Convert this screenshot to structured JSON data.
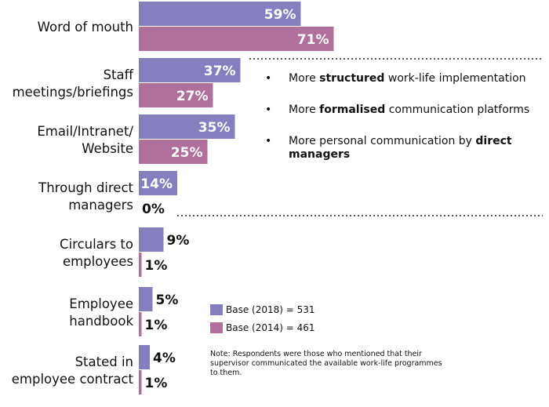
{
  "chart_data": {
    "type": "bar",
    "orientation": "horizontal",
    "categories": [
      [
        "Word of mouth"
      ],
      [
        "Staff",
        "meetings/briefings"
      ],
      [
        "Email/Intranet/",
        "Website"
      ],
      [
        "Through direct",
        "managers"
      ],
      [
        "Circulars to",
        "employees"
      ],
      [
        "Employee",
        "handbook"
      ],
      [
        "Stated in",
        "employee contract"
      ]
    ],
    "series": [
      {
        "name": "Base (2018) = 531",
        "color": "#8480c0",
        "values": [
          59,
          37,
          35,
          14,
          9,
          5,
          4
        ]
      },
      {
        "name": "Base (2014) = 461",
        "color": "#b0709b",
        "values": [
          71,
          27,
          25,
          0,
          1,
          1,
          1
        ]
      }
    ],
    "value_suffix": "%",
    "xlim": [
      0,
      100
    ],
    "grid": false,
    "legend_position": "bottom-center",
    "title": "",
    "xlabel": "",
    "ylabel": ""
  },
  "bullets": [
    {
      "before": "More ",
      "bold": "structured",
      "after": " work-life implementation"
    },
    {
      "before": "More ",
      "bold": "formalised",
      "after": " communication platforms"
    },
    {
      "before": "More personal communication by ",
      "bold": "direct managers",
      "after": ""
    }
  ],
  "bullet_symbol": "•",
  "note": "Note: Respondents were those who mentioned that their supervisor communicated the available work-life programmes to them."
}
